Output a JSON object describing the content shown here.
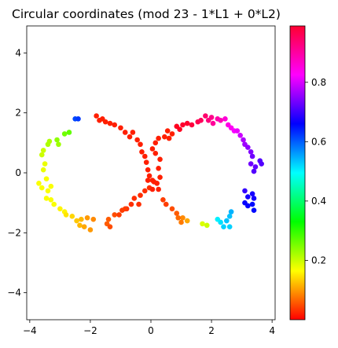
{
  "chart_data": {
    "type": "scatter",
    "title": "Circular coordinates (mod 23 - 1*L1 + 0*L2)",
    "xlabel": "",
    "ylabel": "",
    "xlim": [
      -4.1,
      4.1
    ],
    "ylim": [
      -4.9,
      4.9
    ],
    "x_ticks": [
      -4,
      -2,
      0,
      2,
      4
    ],
    "y_ticks": [
      -4,
      -2,
      0,
      2,
      4
    ],
    "grid": false,
    "colormap": "hsv",
    "colorbar": {
      "range": [
        0.0,
        0.99
      ],
      "ticks": [
        0.2,
        0.4,
        0.6,
        0.8
      ]
    },
    "points": [
      {
        "x": -3.6,
        "y": 0.6,
        "c": 0.2
      },
      {
        "x": -3.55,
        "y": 0.75,
        "c": 0.2
      },
      {
        "x": -3.4,
        "y": 0.95,
        "c": 0.22
      },
      {
        "x": -3.35,
        "y": 1.05,
        "c": 0.22
      },
      {
        "x": -3.1,
        "y": 1.1,
        "c": 0.24
      },
      {
        "x": -2.85,
        "y": 1.3,
        "c": 0.26
      },
      {
        "x": -2.7,
        "y": 1.35,
        "c": 0.27
      },
      {
        "x": -3.05,
        "y": 0.95,
        "c": 0.23
      },
      {
        "x": -2.5,
        "y": 1.8,
        "c": 0.62
      },
      {
        "x": -2.4,
        "y": 1.8,
        "c": 0.63
      },
      {
        "x": -3.5,
        "y": 0.3,
        "c": 0.18
      },
      {
        "x": -3.55,
        "y": 0.1,
        "c": 0.18
      },
      {
        "x": -3.7,
        "y": -0.35,
        "c": 0.17
      },
      {
        "x": -3.6,
        "y": -0.5,
        "c": 0.17
      },
      {
        "x": -3.45,
        "y": -0.2,
        "c": 0.17
      },
      {
        "x": -3.4,
        "y": -0.6,
        "c": 0.17
      },
      {
        "x": -3.3,
        "y": -0.45,
        "c": 0.17
      },
      {
        "x": -3.45,
        "y": -0.85,
        "c": 0.17
      },
      {
        "x": -3.3,
        "y": -0.9,
        "c": 0.17
      },
      {
        "x": -3.2,
        "y": -1.05,
        "c": 0.17
      },
      {
        "x": -3.0,
        "y": -1.2,
        "c": 0.16
      },
      {
        "x": -2.85,
        "y": -1.3,
        "c": 0.16
      },
      {
        "x": -2.8,
        "y": -1.4,
        "c": 0.15
      },
      {
        "x": -2.6,
        "y": -1.45,
        "c": 0.14
      },
      {
        "x": -2.45,
        "y": -1.6,
        "c": 0.13
      },
      {
        "x": -2.3,
        "y": -1.55,
        "c": 0.12
      },
      {
        "x": -2.35,
        "y": -1.75,
        "c": 0.12
      },
      {
        "x": -2.2,
        "y": -1.8,
        "c": 0.11
      },
      {
        "x": -2.0,
        "y": -1.9,
        "c": 0.1
      },
      {
        "x": -1.9,
        "y": -1.55,
        "c": 0.09
      },
      {
        "x": -1.45,
        "y": -1.7,
        "c": 0.06
      },
      {
        "x": -1.4,
        "y": -1.55,
        "c": 0.06
      },
      {
        "x": -1.35,
        "y": -1.8,
        "c": 0.05
      },
      {
        "x": -1.2,
        "y": -1.4,
        "c": 0.05
      },
      {
        "x": -1.05,
        "y": -1.4,
        "c": 0.04
      },
      {
        "x": -0.95,
        "y": -1.25,
        "c": 0.04
      },
      {
        "x": -0.8,
        "y": -1.2,
        "c": 0.03
      },
      {
        "x": -0.65,
        "y": -1.05,
        "c": 0.03
      },
      {
        "x": -0.55,
        "y": -0.85,
        "c": 0.03
      },
      {
        "x": -0.4,
        "y": -1.05,
        "c": 0.03
      },
      {
        "x": -0.35,
        "y": -0.75,
        "c": 0.03
      },
      {
        "x": -0.2,
        "y": -0.6,
        "c": 0.03
      },
      {
        "x": -0.05,
        "y": -0.5,
        "c": 0.03
      },
      {
        "x": -1.8,
        "y": 1.9,
        "c": 0.02
      },
      {
        "x": -1.7,
        "y": 1.75,
        "c": 0.02
      },
      {
        "x": -1.6,
        "y": 1.8,
        "c": 0.02
      },
      {
        "x": -1.5,
        "y": 1.7,
        "c": 0.02
      },
      {
        "x": -1.35,
        "y": 1.65,
        "c": 0.02
      },
      {
        "x": -1.2,
        "y": 1.6,
        "c": 0.02
      },
      {
        "x": -1.0,
        "y": 1.5,
        "c": 0.02
      },
      {
        "x": -0.85,
        "y": 1.35,
        "c": 0.02
      },
      {
        "x": -0.7,
        "y": 1.2,
        "c": 0.02
      },
      {
        "x": -0.6,
        "y": 1.35,
        "c": 0.02
      },
      {
        "x": -0.45,
        "y": 1.1,
        "c": 0.02
      },
      {
        "x": -0.35,
        "y": 0.95,
        "c": 0.02
      },
      {
        "x": -0.3,
        "y": 0.7,
        "c": 0.02
      },
      {
        "x": -0.2,
        "y": 0.55,
        "c": 0.02
      },
      {
        "x": -0.15,
        "y": 0.35,
        "c": 0.02
      },
      {
        "x": -0.1,
        "y": 0.1,
        "c": 0.02
      },
      {
        "x": -0.05,
        "y": -0.1,
        "c": 0.02
      },
      {
        "x": -0.1,
        "y": -0.25,
        "c": 0.02
      },
      {
        "x": 0.05,
        "y": -0.25,
        "c": 0.02
      },
      {
        "x": 0.1,
        "y": -0.3,
        "c": 0.02
      },
      {
        "x": 0.2,
        "y": -0.35,
        "c": 0.02
      },
      {
        "x": 0.25,
        "y": -0.55,
        "c": 0.02
      },
      {
        "x": 0.05,
        "y": -0.55,
        "c": 0.02
      },
      {
        "x": 0.3,
        "y": -0.15,
        "c": 0.02
      },
      {
        "x": 0.25,
        "y": 0.15,
        "c": 0.02
      },
      {
        "x": 0.3,
        "y": 0.45,
        "c": 0.02
      },
      {
        "x": 0.15,
        "y": 0.65,
        "c": 0.02
      },
      {
        "x": 0.05,
        "y": 0.8,
        "c": 0.02
      },
      {
        "x": 0.15,
        "y": 1.0,
        "c": 0.02
      },
      {
        "x": 0.25,
        "y": 1.15,
        "c": 0.02
      },
      {
        "x": 0.45,
        "y": 1.2,
        "c": 0.02
      },
      {
        "x": 0.55,
        "y": 1.4,
        "c": 0.02
      },
      {
        "x": 0.6,
        "y": 1.15,
        "c": 0.02
      },
      {
        "x": 0.7,
        "y": 1.3,
        "c": 0.02
      },
      {
        "x": 0.85,
        "y": 1.55,
        "c": 0.98
      },
      {
        "x": 0.95,
        "y": 1.45,
        "c": 0.98
      },
      {
        "x": 1.05,
        "y": 1.6,
        "c": 0.97
      },
      {
        "x": 1.2,
        "y": 1.65,
        "c": 0.97
      },
      {
        "x": 1.35,
        "y": 1.6,
        "c": 0.96
      },
      {
        "x": 1.55,
        "y": 1.7,
        "c": 0.95
      },
      {
        "x": 1.65,
        "y": 1.75,
        "c": 0.94
      },
      {
        "x": 1.8,
        "y": 1.9,
        "c": 0.93
      },
      {
        "x": 1.9,
        "y": 1.75,
        "c": 0.92
      },
      {
        "x": 2.0,
        "y": 1.85,
        "c": 0.91
      },
      {
        "x": 2.05,
        "y": 1.65,
        "c": 0.9
      },
      {
        "x": 2.2,
        "y": 1.8,
        "c": 0.89
      },
      {
        "x": 2.3,
        "y": 1.75,
        "c": 0.88
      },
      {
        "x": 2.45,
        "y": 1.8,
        "c": 0.86
      },
      {
        "x": 2.55,
        "y": 1.6,
        "c": 0.85
      },
      {
        "x": 2.65,
        "y": 1.5,
        "c": 0.84
      },
      {
        "x": 2.75,
        "y": 1.4,
        "c": 0.83
      },
      {
        "x": 2.85,
        "y": 1.4,
        "c": 0.82
      },
      {
        "x": 2.95,
        "y": 1.25,
        "c": 0.8
      },
      {
        "x": 3.05,
        "y": 1.1,
        "c": 0.78
      },
      {
        "x": 3.1,
        "y": 0.95,
        "c": 0.77
      },
      {
        "x": 3.2,
        "y": 0.85,
        "c": 0.76
      },
      {
        "x": 3.3,
        "y": 0.7,
        "c": 0.75
      },
      {
        "x": 3.35,
        "y": 0.55,
        "c": 0.74
      },
      {
        "x": 3.3,
        "y": 0.3,
        "c": 0.74
      },
      {
        "x": 3.45,
        "y": 0.2,
        "c": 0.73
      },
      {
        "x": 3.6,
        "y": 0.4,
        "c": 0.72
      },
      {
        "x": 3.65,
        "y": 0.3,
        "c": 0.72
      },
      {
        "x": 3.4,
        "y": 0.05,
        "c": 0.72
      },
      {
        "x": 3.1,
        "y": -0.6,
        "c": 0.7
      },
      {
        "x": 3.2,
        "y": -0.8,
        "c": 0.68
      },
      {
        "x": 3.35,
        "y": -0.7,
        "c": 0.68
      },
      {
        "x": 3.4,
        "y": -0.85,
        "c": 0.68
      },
      {
        "x": 3.1,
        "y": -1.0,
        "c": 0.67
      },
      {
        "x": 3.2,
        "y": -1.1,
        "c": 0.67
      },
      {
        "x": 3.35,
        "y": -1.05,
        "c": 0.66
      },
      {
        "x": 3.4,
        "y": -1.25,
        "c": 0.66
      },
      {
        "x": 2.65,
        "y": -1.3,
        "c": 0.55
      },
      {
        "x": 2.6,
        "y": -1.45,
        "c": 0.54
      },
      {
        "x": 2.5,
        "y": -1.6,
        "c": 0.54
      },
      {
        "x": 2.6,
        "y": -1.8,
        "c": 0.53
      },
      {
        "x": 2.4,
        "y": -1.8,
        "c": 0.53
      },
      {
        "x": 2.3,
        "y": -1.65,
        "c": 0.52
      },
      {
        "x": 2.2,
        "y": -1.55,
        "c": 0.51
      },
      {
        "x": 1.85,
        "y": -1.75,
        "c": 0.2
      },
      {
        "x": 1.7,
        "y": -1.7,
        "c": 0.19
      },
      {
        "x": 1.2,
        "y": -1.6,
        "c": 0.11
      },
      {
        "x": 1.05,
        "y": -1.5,
        "c": 0.09
      },
      {
        "x": 1.0,
        "y": -1.65,
        "c": 0.08
      },
      {
        "x": 0.9,
        "y": -1.5,
        "c": 0.07
      },
      {
        "x": 0.85,
        "y": -1.35,
        "c": 0.06
      },
      {
        "x": 0.7,
        "y": -1.2,
        "c": 0.05
      },
      {
        "x": 0.5,
        "y": -1.05,
        "c": 0.04
      },
      {
        "x": 0.4,
        "y": -0.9,
        "c": 0.04
      },
      {
        "x": -0.85,
        "y": -1.2,
        "c": 0.04
      },
      {
        "x": -2.1,
        "y": -1.5,
        "c": 0.1
      }
    ]
  }
}
